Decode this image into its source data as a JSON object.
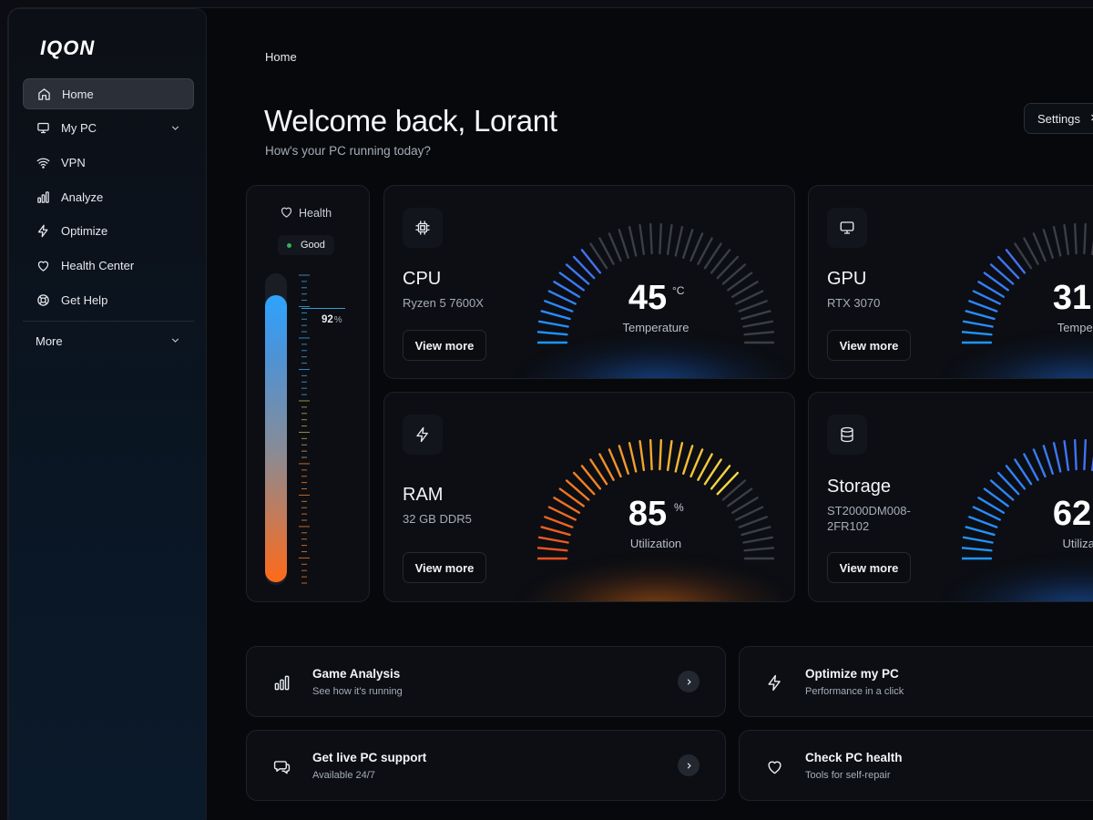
{
  "app": {
    "logo": "IQON"
  },
  "sidebar": {
    "items": [
      {
        "label": "Home",
        "icon": "home-icon",
        "active": true
      },
      {
        "label": "My PC",
        "icon": "monitor-icon",
        "expandable": true
      },
      {
        "label": "VPN",
        "icon": "wifi-icon"
      },
      {
        "label": "Analyze",
        "icon": "bar-chart-icon"
      },
      {
        "label": "Optimize",
        "icon": "bolt-icon"
      },
      {
        "label": "Health Center",
        "icon": "heart-icon"
      },
      {
        "label": "Get Help",
        "icon": "lifebuoy-icon"
      }
    ],
    "more_label": "More"
  },
  "header": {
    "breadcrumb": "Home",
    "title": "Welcome back, Lorant",
    "subtitle": "How's your PC running today?",
    "settings_label": "Settings"
  },
  "health": {
    "label": "Health",
    "status": "Good",
    "status_color": "#2fb35a",
    "percent": 92,
    "percent_unit": "%"
  },
  "metrics": {
    "cpu": {
      "name": "CPU",
      "model": "Ryzen 5 7600X",
      "value": 45,
      "unit": "°C",
      "value_label": "Temperature",
      "fraction": 0.3,
      "color": "#2e8fff",
      "view_label": "View more",
      "icon": "chip-icon"
    },
    "gpu": {
      "name": "GPU",
      "model": "RTX 3070",
      "value": 31,
      "unit": "",
      "value_label": "Tempera",
      "fraction": 0.3,
      "color": "#2e8fff",
      "view_label": "View more",
      "icon": "monitor-icon"
    },
    "ram": {
      "name": "RAM",
      "model": "32 GB DDR5",
      "value": 85,
      "unit": "%",
      "value_label": "Utilization",
      "fraction": 0.76,
      "color": "#ff8a1a",
      "view_label": "View more",
      "icon": "bolt-icon"
    },
    "storage": {
      "name": "Storage",
      "model_line1": "ST2000DM008-",
      "model_line2": "2FR102",
      "value": 62,
      "unit": "",
      "value_label": "Utilizat",
      "fraction": 0.55,
      "color": "#2e8fff",
      "view_label": "View more",
      "icon": "database-icon"
    }
  },
  "actions": [
    {
      "title": "Game Analysis",
      "subtitle": "See how it's running",
      "icon": "bar-chart-icon",
      "arrow": true
    },
    {
      "title": "Optimize my PC",
      "subtitle": "Performance in a click",
      "icon": "bolt-icon",
      "arrow": false
    },
    {
      "title": "Get live PC support",
      "subtitle": "Available 24/7",
      "icon": "chat-icon",
      "arrow": true
    },
    {
      "title": "Check PC health",
      "subtitle": "Tools for self-repair",
      "icon": "heart-icon",
      "arrow": false
    }
  ]
}
